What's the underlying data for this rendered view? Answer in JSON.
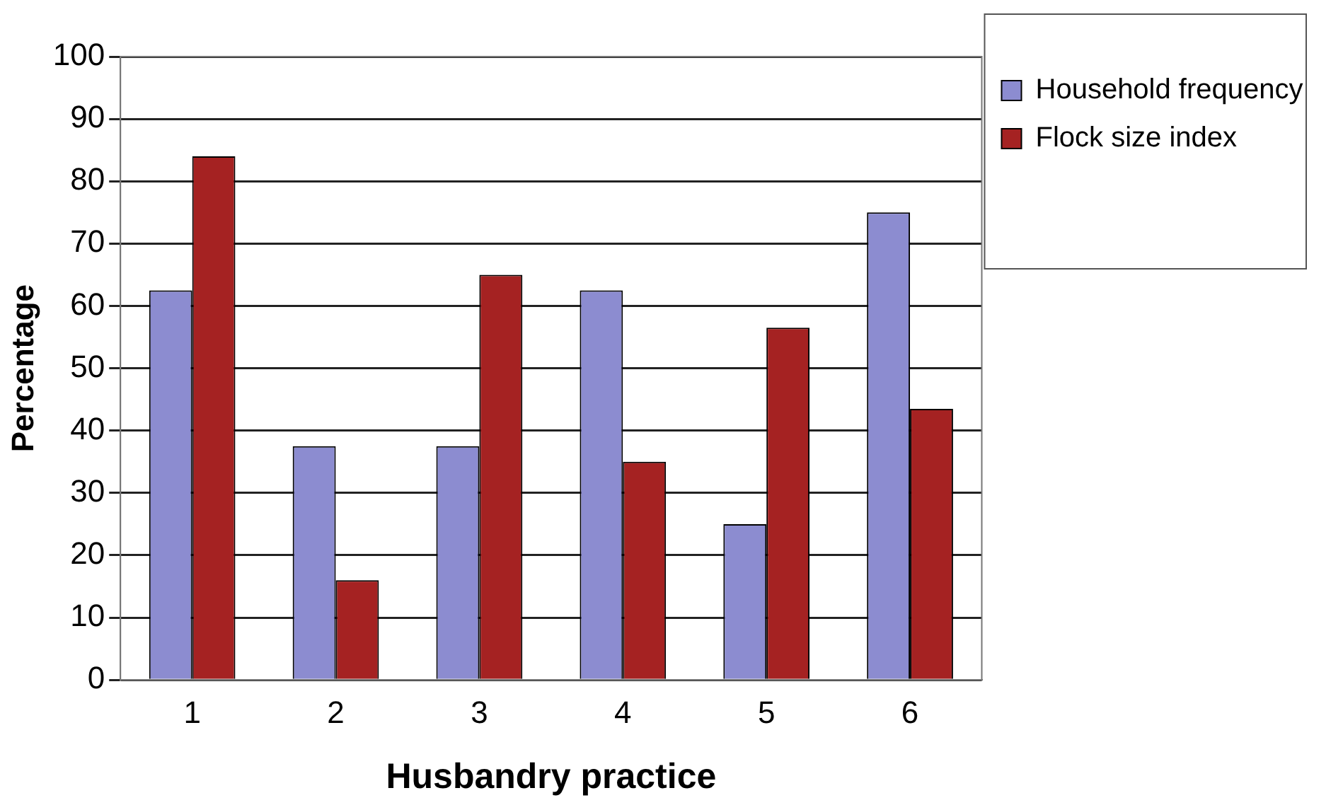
{
  "chart_data": {
    "type": "bar",
    "xlabel": "Husbandry practice",
    "ylabel": "Percentage",
    "categories": [
      "1",
      "2",
      "3",
      "4",
      "5",
      "6"
    ],
    "series": [
      {
        "name": "Household frequency",
        "color": "#8c8cd0",
        "values": [
          62.5,
          37.5,
          37.5,
          62.5,
          25,
          75
        ]
      },
      {
        "name": "Flock size index",
        "color": "#a52222",
        "values": [
          84,
          16,
          65,
          35,
          56.5,
          43.5
        ]
      }
    ],
    "ylim": [
      0,
      100
    ],
    "yticks": [
      0,
      10,
      20,
      30,
      40,
      50,
      60,
      70,
      80,
      90,
      100
    ],
    "grid": "y",
    "legend": "top right"
  }
}
